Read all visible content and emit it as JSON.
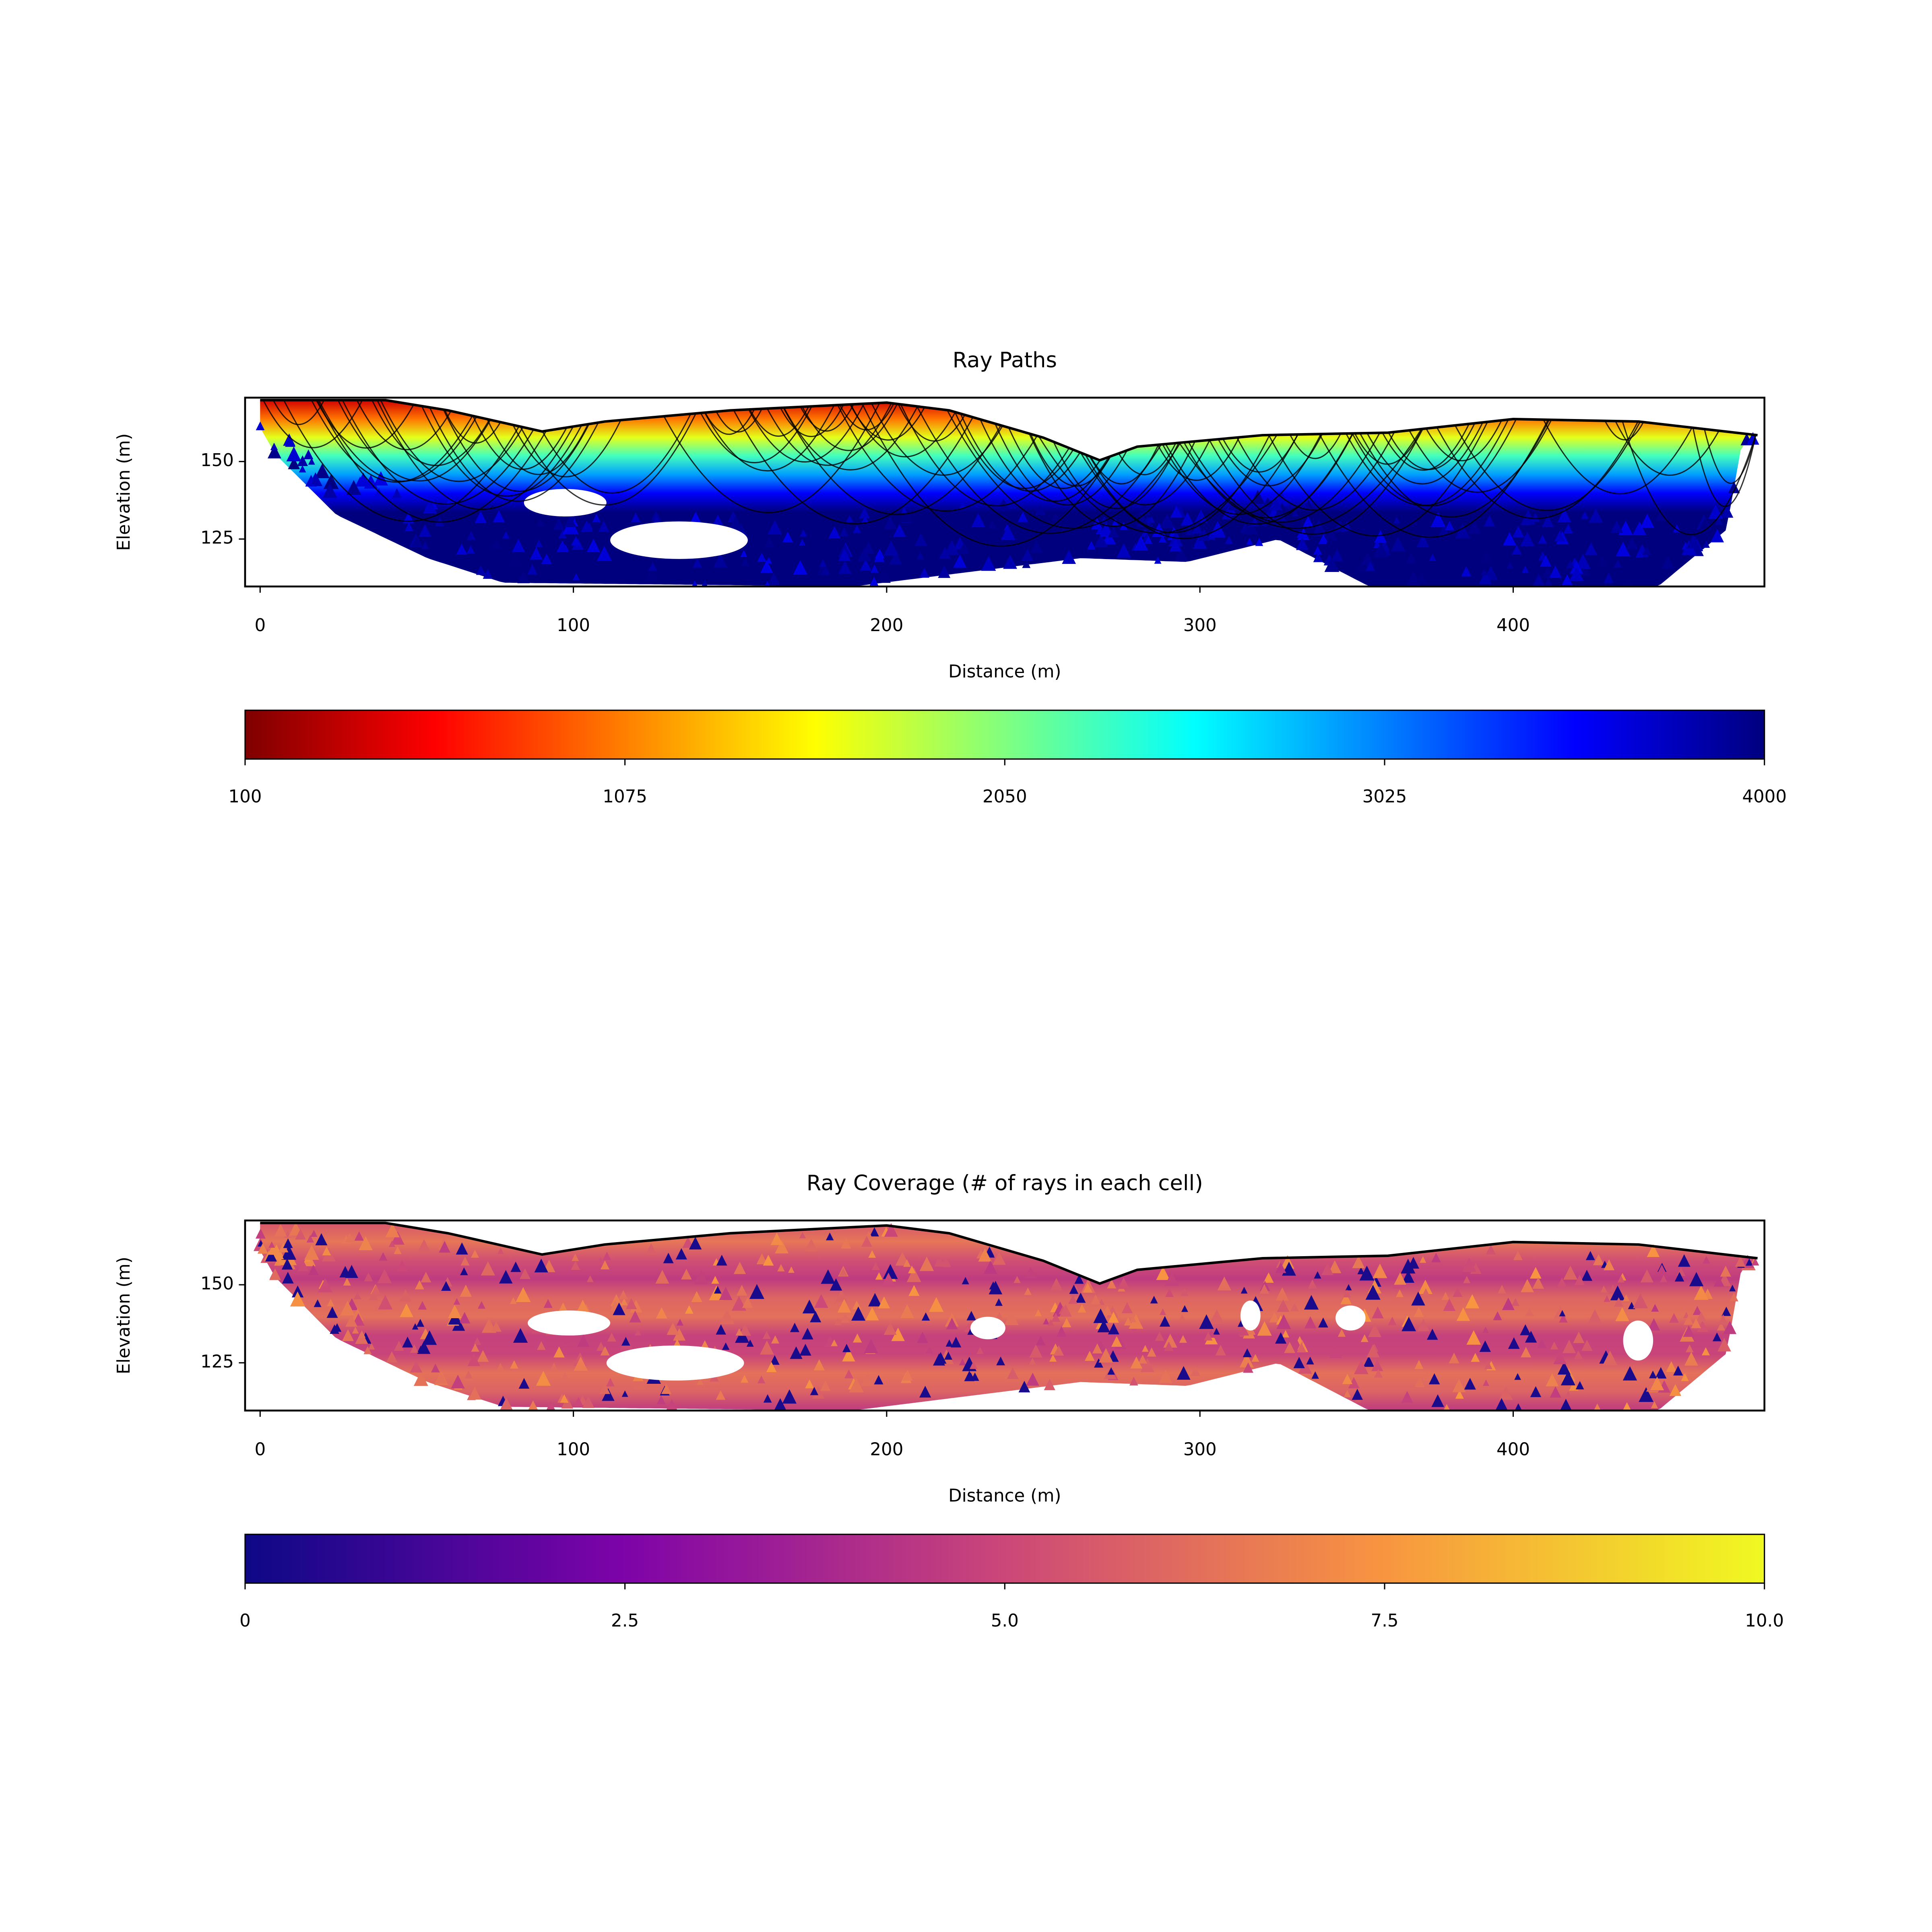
{
  "chart_data": [
    {
      "type": "mesh",
      "title": "Ray Paths",
      "xlabel": "Distance (m)",
      "ylabel": "Elevation (m)",
      "xlim": [
        -4.8,
        480.2
      ],
      "ylim": [
        109.7,
        170.6
      ],
      "xticks": [
        0,
        100,
        200,
        300,
        400
      ],
      "yticks": [
        125,
        150
      ],
      "x": [
        0,
        40,
        60,
        90,
        110,
        150,
        200,
        220,
        250,
        268,
        280,
        320,
        360,
        400,
        440,
        478
      ],
      "values": [
        169.8,
        169.8,
        166.5,
        159.7,
        162.9,
        166.5,
        169,
        166.5,
        157.7,
        150.4,
        154.8,
        158.5,
        159.3,
        163.7,
        162.9,
        158.5
      ],
      "colorbar": {
        "cmap": "jet_r",
        "lim": [
          100,
          4000
        ],
        "ticks": [
          100,
          1075,
          2050,
          3025,
          4000
        ]
      }
    },
    {
      "type": "mesh",
      "title": "Ray Coverage (# of rays in each cell)",
      "xlabel": "Distance (m)",
      "ylabel": "Elevation (m)",
      "xlim": [
        -4.8,
        480.2
      ],
      "ylim": [
        109.7,
        170.6
      ],
      "xticks": [
        0,
        100,
        200,
        300,
        400
      ],
      "yticks": [
        125,
        150
      ],
      "x": [
        0,
        40,
        60,
        90,
        110,
        150,
        200,
        220,
        250,
        268,
        280,
        320,
        360,
        400,
        440,
        478
      ],
      "values": [
        169.8,
        169.8,
        166.5,
        159.7,
        162.9,
        166.5,
        169,
        166.5,
        157.7,
        150.4,
        154.8,
        158.5,
        159.3,
        163.7,
        162.9,
        158.5
      ],
      "colorbar": {
        "cmap": "plasma",
        "lim": [
          0,
          10
        ],
        "ticks": [
          0,
          2.5,
          {
            "value": 5,
            "label": "5.0"
          },
          7.5,
          {
            "value": 10,
            "label": "10.0"
          }
        ]
      }
    }
  ]
}
